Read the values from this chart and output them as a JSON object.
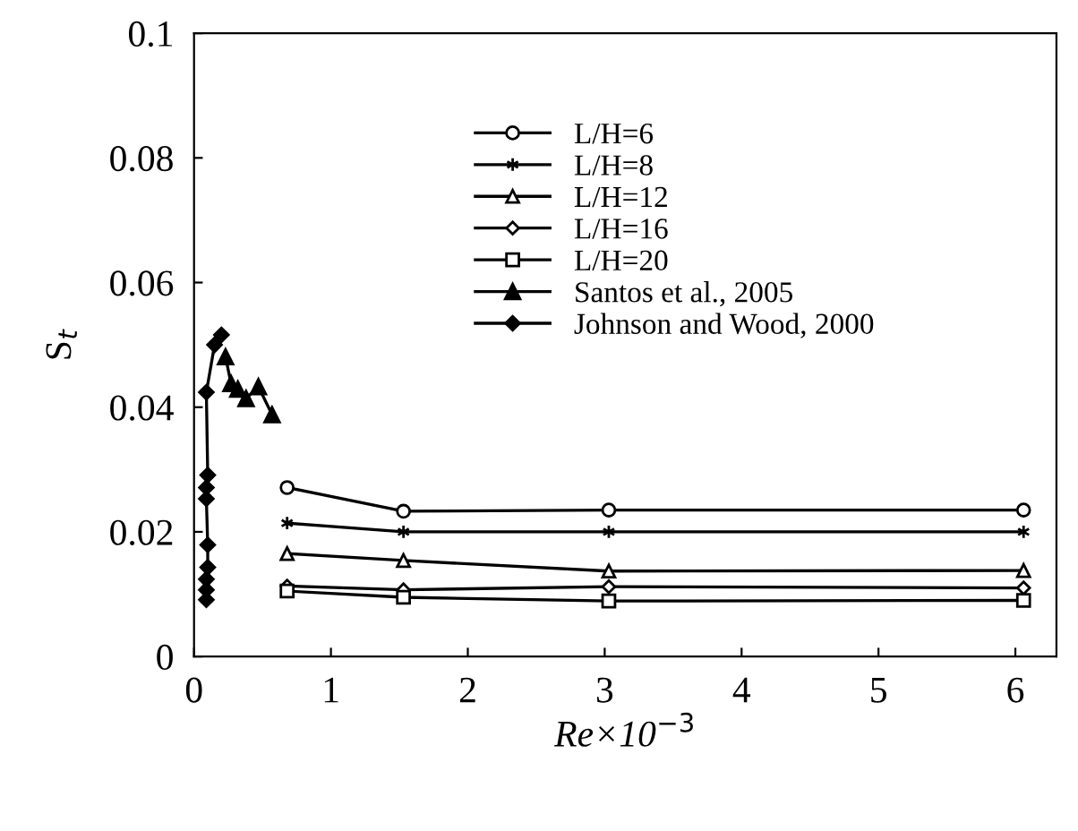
{
  "chart_data": {
    "type": "line",
    "xlabel": "Re×10$^{−3}$",
    "ylabel": "S$_{t}$",
    "xlim": [
      0,
      6.3
    ],
    "ylim": [
      0,
      0.1
    ],
    "xticks": [
      0,
      1,
      2,
      3,
      4,
      5,
      6
    ],
    "yticks": [
      0,
      0.02,
      0.04,
      0.06,
      0.08,
      0.1
    ],
    "grid": false,
    "legend": "top right",
    "series": [
      {
        "name": "L/H=6",
        "color": "#000000",
        "marker": "circle",
        "x": [
          0.68,
          1.53,
          3.03,
          6.06
        ],
        "values": [
          0.0271,
          0.0233,
          0.0235,
          0.0235
        ]
      },
      {
        "name": "L/H=8",
        "color": "#000000",
        "marker": "cross",
        "x": [
          0.68,
          1.53,
          3.03,
          6.06
        ],
        "values": [
          0.0214,
          0.02,
          0.02,
          0.02
        ]
      },
      {
        "name": "L/H=12",
        "color": "#000000",
        "marker": "triangle",
        "x": [
          0.68,
          1.53,
          3.03,
          6.06
        ],
        "values": [
          0.0165,
          0.0154,
          0.0137,
          0.0138
        ]
      },
      {
        "name": "L/H=16",
        "color": "#000000",
        "marker": "diamond",
        "x": [
          0.68,
          1.53,
          3.03,
          6.06
        ],
        "values": [
          0.0113,
          0.0107,
          0.0112,
          0.011
        ]
      },
      {
        "name": "L/H=20",
        "color": "#000000",
        "marker": "square",
        "x": [
          0.68,
          1.53,
          3.03,
          6.06
        ],
        "values": [
          0.0105,
          0.0095,
          0.0089,
          0.009
        ]
      },
      {
        "name": "Santos et al., 2005",
        "color": "#000000",
        "marker": "triangle",
        "x": [
          0.23,
          0.27,
          0.32,
          0.38,
          0.47,
          0.57
        ],
        "values": [
          0.0481,
          0.0438,
          0.0429,
          0.0414,
          0.0433,
          0.0388
        ]
      },
      {
        "name": "Johnson and Wood, 2000",
        "color": "#000000",
        "marker": "diamond",
        "x": [
          0.09,
          0.09,
          0.09,
          0.1,
          0.1,
          0.09,
          0.09,
          0.1,
          0.09,
          0.15,
          0.2
        ],
        "values": [
          0.0091,
          0.0107,
          0.0124,
          0.0143,
          0.0179,
          0.0253,
          0.0271,
          0.0291,
          0.0424,
          0.05,
          0.0516
        ]
      }
    ]
  }
}
